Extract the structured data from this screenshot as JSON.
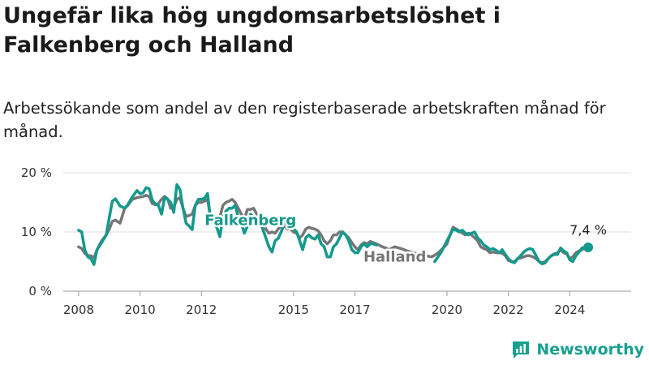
{
  "title": "Ungefär lika hög ungdomsarbetslöshet i Falkenberg och Halland",
  "subtitle": "Arbetssökande som andel av den registerbaserade arbetskraften månad för månad.",
  "brand": {
    "name": "Newsworthy",
    "icon": "newsworthy-logo-icon",
    "color": "#17a08e"
  },
  "chart_data": {
    "type": "line",
    "x_unit": "year",
    "y_unit": "percent",
    "ylim": [
      0,
      20
    ],
    "y_ticks": [
      0,
      10,
      20
    ],
    "y_tick_labels": [
      "0 %",
      "10 %",
      "20 %"
    ],
    "x_ticks": [
      2008,
      2010,
      2012,
      2015,
      2017,
      2020,
      2022,
      2024
    ],
    "grid": true,
    "end_label": "7,4 %",
    "series": [
      {
        "name": "Falkenberg",
        "color": "#14998c",
        "points": [
          [
            2008.0,
            10.3
          ],
          [
            2008.1,
            10.0
          ],
          [
            2008.2,
            7.0
          ],
          [
            2008.3,
            5.8
          ],
          [
            2008.4,
            5.5
          ],
          [
            2008.5,
            4.5
          ],
          [
            2008.6,
            7.0
          ],
          [
            2008.75,
            8.2
          ],
          [
            2008.9,
            9.5
          ],
          [
            2009.0,
            12.5
          ],
          [
            2009.1,
            15.2
          ],
          [
            2009.2,
            15.6
          ],
          [
            2009.35,
            14.4
          ],
          [
            2009.5,
            14.0
          ],
          [
            2009.6,
            14.6
          ],
          [
            2009.75,
            15.9
          ],
          [
            2009.9,
            17.0
          ],
          [
            2010.0,
            16.5
          ],
          [
            2010.1,
            16.6
          ],
          [
            2010.2,
            17.5
          ],
          [
            2010.3,
            17.3
          ],
          [
            2010.4,
            15.4
          ],
          [
            2010.5,
            14.7
          ],
          [
            2010.6,
            14.5
          ],
          [
            2010.7,
            13.0
          ],
          [
            2010.8,
            15.8
          ],
          [
            2010.9,
            15.5
          ],
          [
            2011.0,
            15.0
          ],
          [
            2011.1,
            13.3
          ],
          [
            2011.2,
            18.0
          ],
          [
            2011.3,
            17.2
          ],
          [
            2011.4,
            14.0
          ],
          [
            2011.5,
            11.5
          ],
          [
            2011.6,
            11.0
          ],
          [
            2011.7,
            10.4
          ],
          [
            2011.8,
            14.5
          ],
          [
            2011.9,
            15.5
          ],
          [
            2012.0,
            15.5
          ],
          [
            2012.1,
            15.7
          ],
          [
            2012.2,
            16.5
          ],
          [
            2012.3,
            12.0
          ]
        ]
      },
      {
        "name": "Falkenberg",
        "color": "#14998c",
        "points": [
          [
            2012.4,
            11.5
          ],
          [
            2012.5,
            10.8
          ],
          [
            2012.6,
            9.2
          ],
          [
            2012.7,
            12.5
          ],
          [
            2012.8,
            13.5
          ],
          [
            2012.9,
            14.0
          ],
          [
            2013.0,
            14.0
          ],
          [
            2013.1,
            14.5
          ],
          [
            2013.2,
            12.5
          ],
          [
            2013.3,
            11.5
          ],
          [
            2013.4,
            9.8
          ],
          [
            2013.5,
            11.0
          ],
          [
            2013.6,
            13.0
          ],
          [
            2013.7,
            12.5
          ],
          [
            2013.8,
            12.4
          ],
          [
            2013.9,
            12.2
          ],
          [
            2014.0,
            10.5
          ],
          [
            2014.1,
            9.0
          ],
          [
            2014.2,
            7.5
          ],
          [
            2014.3,
            6.6
          ],
          [
            2014.4,
            8.5
          ],
          [
            2014.5,
            8.9
          ],
          [
            2014.6,
            10.0
          ],
          [
            2014.7,
            11.5
          ],
          [
            2014.8,
            11.8
          ],
          [
            2014.9,
            11.0
          ],
          [
            2015.0,
            10.6
          ],
          [
            2015.1,
            10.0
          ],
          [
            2015.2,
            8.5
          ],
          [
            2015.3,
            7.0
          ],
          [
            2015.4,
            9.0
          ],
          [
            2015.5,
            9.5
          ],
          [
            2015.6,
            9.0
          ],
          [
            2015.7,
            8.8
          ],
          [
            2015.8,
            9.5
          ],
          [
            2015.9,
            8.0
          ],
          [
            2016.0,
            7.5
          ],
          [
            2016.1,
            5.8
          ],
          [
            2016.2,
            5.8
          ],
          [
            2016.3,
            7.5
          ],
          [
            2016.4,
            8.0
          ],
          [
            2016.5,
            9.0
          ],
          [
            2016.6,
            10.0
          ],
          [
            2016.7,
            9.5
          ],
          [
            2016.8,
            8.5
          ],
          [
            2016.9,
            7.0
          ],
          [
            2017.0,
            6.5
          ],
          [
            2017.1,
            6.5
          ],
          [
            2017.2,
            7.5
          ],
          [
            2017.3,
            8.0
          ],
          [
            2017.4,
            7.5
          ],
          [
            2017.5,
            8.0
          ],
          [
            2017.6,
            8.0
          ],
          [
            2017.7,
            7.8
          ]
        ]
      },
      {
        "name": "Falkenberg",
        "color": "#14998c",
        "points": [
          [
            2019.6,
            5.0
          ],
          [
            2019.8,
            6.5
          ],
          [
            2019.9,
            7.5
          ],
          [
            2020.0,
            8.5
          ],
          [
            2020.1,
            9.5
          ],
          [
            2020.2,
            10.5
          ],
          [
            2020.3,
            10.3
          ],
          [
            2020.4,
            10.0
          ],
          [
            2020.5,
            10.3
          ],
          [
            2020.6,
            9.8
          ],
          [
            2020.7,
            9.5
          ],
          [
            2020.8,
            9.8
          ],
          [
            2020.9,
            10.0
          ],
          [
            2021.0,
            9.0
          ],
          [
            2021.1,
            8.5
          ],
          [
            2021.2,
            7.8
          ],
          [
            2021.3,
            7.5
          ],
          [
            2021.4,
            7.0
          ],
          [
            2021.5,
            7.2
          ],
          [
            2021.6,
            6.9
          ],
          [
            2021.7,
            6.5
          ],
          [
            2021.8,
            7.0
          ],
          [
            2021.9,
            6.2
          ],
          [
            2022.0,
            5.5
          ],
          [
            2022.1,
            5.0
          ],
          [
            2022.2,
            4.8
          ],
          [
            2022.3,
            5.5
          ],
          [
            2022.4,
            6.0
          ],
          [
            2022.5,
            6.6
          ],
          [
            2022.6,
            7.0
          ],
          [
            2022.7,
            7.2
          ],
          [
            2022.8,
            7.0
          ],
          [
            2022.9,
            6.0
          ],
          [
            2023.0,
            5.0
          ],
          [
            2023.1,
            4.6
          ],
          [
            2023.2,
            4.8
          ],
          [
            2023.3,
            5.5
          ],
          [
            2023.4,
            6.0
          ],
          [
            2023.5,
            6.2
          ],
          [
            2023.6,
            6.2
          ],
          [
            2023.7,
            7.3
          ],
          [
            2023.8,
            6.8
          ],
          [
            2023.9,
            6.5
          ],
          [
            2024.0,
            5.3
          ],
          [
            2024.1,
            5.0
          ],
          [
            2024.2,
            6.0
          ],
          [
            2024.3,
            6.6
          ],
          [
            2024.4,
            7.3
          ],
          [
            2024.5,
            7.4
          ],
          [
            2024.6,
            7.4
          ]
        ]
      },
      {
        "name": "Halland",
        "color": "#777777",
        "points": [
          [
            2008.0,
            7.5
          ],
          [
            2008.1,
            7.2
          ],
          [
            2008.2,
            6.4
          ],
          [
            2008.3,
            6.0
          ],
          [
            2008.4,
            6.0
          ],
          [
            2008.5,
            5.6
          ],
          [
            2008.6,
            7.0
          ],
          [
            2008.75,
            8.5
          ],
          [
            2008.9,
            9.5
          ],
          [
            2009.0,
            10.5
          ],
          [
            2009.1,
            11.8
          ],
          [
            2009.2,
            12.0
          ],
          [
            2009.35,
            11.5
          ],
          [
            2009.5,
            14.0
          ],
          [
            2009.6,
            14.5
          ],
          [
            2009.75,
            15.5
          ],
          [
            2009.9,
            15.8
          ],
          [
            2010.0,
            15.9
          ],
          [
            2010.1,
            16.0
          ],
          [
            2010.2,
            16.2
          ],
          [
            2010.3,
            16.0
          ],
          [
            2010.4,
            14.8
          ],
          [
            2010.5,
            14.6
          ],
          [
            2010.6,
            14.8
          ],
          [
            2010.7,
            15.5
          ],
          [
            2010.8,
            16.0
          ],
          [
            2010.9,
            15.6
          ],
          [
            2011.0,
            14.0
          ],
          [
            2011.1,
            14.2
          ],
          [
            2011.2,
            15.5
          ],
          [
            2011.3,
            15.8
          ],
          [
            2011.4,
            14.0
          ],
          [
            2011.5,
            12.6
          ],
          [
            2011.6,
            12.8
          ],
          [
            2011.7,
            13.0
          ],
          [
            2011.8,
            14.5
          ],
          [
            2011.9,
            15.0
          ],
          [
            2012.0,
            15.0
          ],
          [
            2012.1,
            15.2
          ],
          [
            2012.2,
            15.5
          ],
          [
            2012.3,
            12.5
          ],
          [
            2012.4,
            13.0
          ],
          [
            2012.5,
            12.0
          ],
          [
            2012.6,
            12.5
          ],
          [
            2012.7,
            14.5
          ],
          [
            2012.8,
            15.0
          ],
          [
            2012.9,
            15.2
          ],
          [
            2013.0,
            15.5
          ],
          [
            2013.1,
            15.0
          ],
          [
            2013.2,
            14.0
          ],
          [
            2013.3,
            13.0
          ],
          [
            2013.4,
            12.2
          ],
          [
            2013.5,
            13.8
          ],
          [
            2013.6,
            13.8
          ],
          [
            2013.7,
            14.0
          ],
          [
            2013.8,
            13.0
          ],
          [
            2013.9,
            12.5
          ],
          [
            2014.0,
            12.0
          ],
          [
            2014.1,
            10.5
          ],
          [
            2014.2,
            9.8
          ],
          [
            2014.3,
            10.0
          ],
          [
            2014.4,
            9.8
          ],
          [
            2014.5,
            10.5
          ],
          [
            2014.6,
            11.0
          ],
          [
            2014.7,
            11.0
          ],
          [
            2014.8,
            10.5
          ],
          [
            2014.9,
            10.5
          ],
          [
            2015.0,
            10.0
          ],
          [
            2015.1,
            9.8
          ],
          [
            2015.2,
            9.0
          ],
          [
            2015.3,
            9.5
          ],
          [
            2015.4,
            10.5
          ],
          [
            2015.5,
            10.8
          ],
          [
            2015.6,
            10.6
          ],
          [
            2015.7,
            10.5
          ],
          [
            2015.8,
            10.2
          ],
          [
            2015.9,
            9.5
          ],
          [
            2016.0,
            8.5
          ],
          [
            2016.1,
            8.0
          ],
          [
            2016.2,
            8.5
          ],
          [
            2016.3,
            9.5
          ],
          [
            2016.4,
            9.5
          ],
          [
            2016.5,
            10.0
          ],
          [
            2016.6,
            10.0
          ],
          [
            2016.7,
            9.5
          ],
          [
            2016.8,
            9.0
          ],
          [
            2016.9,
            8.2
          ],
          [
            2017.0,
            7.5
          ],
          [
            2017.1,
            7.0
          ],
          [
            2017.2,
            7.8
          ],
          [
            2017.3,
            8.2
          ],
          [
            2017.4,
            8.0
          ],
          [
            2017.5,
            8.4
          ],
          [
            2017.6,
            8.2
          ],
          [
            2017.7,
            8.0
          ],
          [
            2017.9,
            7.5
          ],
          [
            2018.0,
            7.3
          ],
          [
            2018.1,
            7.0
          ],
          [
            2018.3,
            7.5
          ],
          [
            2018.5,
            7.2
          ],
          [
            2018.7,
            6.8
          ],
          [
            2018.9,
            6.5
          ],
          [
            2019.1,
            6.2
          ],
          [
            2019.3,
            6.0
          ],
          [
            2019.5,
            5.8
          ],
          [
            2019.7,
            6.4
          ],
          [
            2019.9,
            7.4
          ],
          [
            2020.0,
            8.0
          ],
          [
            2020.1,
            9.5
          ],
          [
            2020.2,
            10.8
          ],
          [
            2020.3,
            10.5
          ],
          [
            2020.4,
            10.2
          ],
          [
            2020.5,
            9.8
          ],
          [
            2020.6,
            9.5
          ],
          [
            2020.7,
            9.8
          ],
          [
            2020.8,
            9.5
          ],
          [
            2020.9,
            9.0
          ],
          [
            2021.0,
            8.5
          ],
          [
            2021.1,
            7.5
          ],
          [
            2021.2,
            7.2
          ],
          [
            2021.3,
            7.0
          ],
          [
            2021.4,
            6.5
          ],
          [
            2021.5,
            6.6
          ],
          [
            2021.6,
            6.5
          ],
          [
            2021.7,
            6.5
          ],
          [
            2021.8,
            6.4
          ],
          [
            2021.9,
            6.0
          ],
          [
            2022.0,
            5.2
          ],
          [
            2022.1,
            5.0
          ],
          [
            2022.2,
            5.0
          ],
          [
            2022.3,
            5.5
          ],
          [
            2022.4,
            5.6
          ],
          [
            2022.5,
            5.8
          ],
          [
            2022.6,
            6.0
          ],
          [
            2022.7,
            6.0
          ],
          [
            2022.8,
            5.8
          ],
          [
            2022.9,
            5.5
          ],
          [
            2023.0,
            5.0
          ],
          [
            2023.1,
            4.8
          ],
          [
            2023.2,
            5.0
          ],
          [
            2023.3,
            5.5
          ],
          [
            2023.4,
            6.0
          ],
          [
            2023.5,
            6.3
          ],
          [
            2023.6,
            6.5
          ],
          [
            2023.7,
            7.0
          ],
          [
            2023.8,
            6.5
          ],
          [
            2023.9,
            6.3
          ],
          [
            2024.0,
            5.5
          ],
          [
            2024.1,
            5.8
          ],
          [
            2024.2,
            6.5
          ],
          [
            2024.3,
            6.8
          ],
          [
            2024.4,
            7.0
          ],
          [
            2024.5,
            7.3
          ]
        ]
      }
    ],
    "series_labels": [
      {
        "text": "Falkenberg",
        "color": "#14998c",
        "x": 2013.6,
        "y": 12.0,
        "anchor": "middle"
      },
      {
        "text": "Halland",
        "color": "#777777",
        "x": 2018.3,
        "y": 5.8,
        "anchor": "middle"
      }
    ]
  }
}
